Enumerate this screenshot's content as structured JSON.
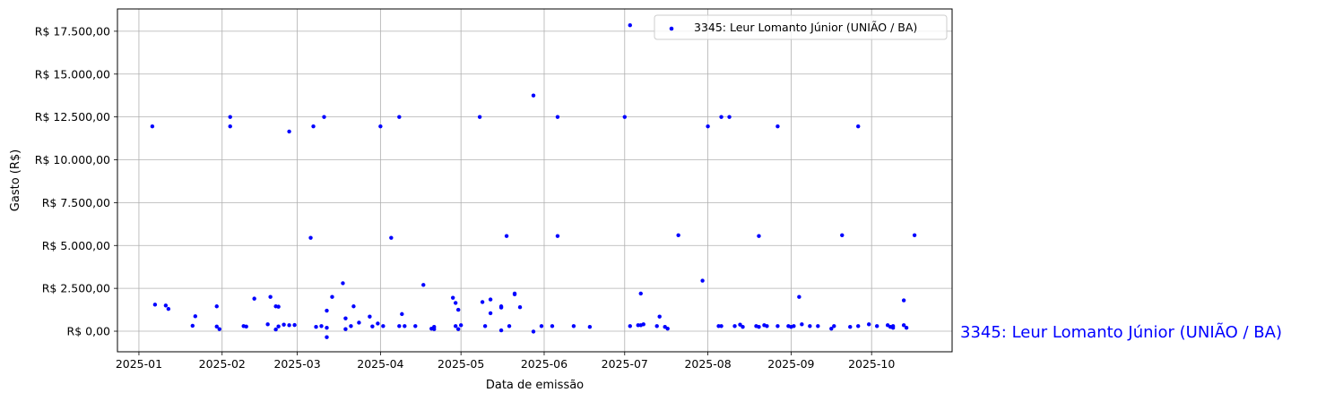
{
  "chart_data": {
    "type": "scatter",
    "xlabel": "Data de emissão",
    "ylabel": "Gasto (R$)",
    "x_axis_type": "date",
    "xlim": [
      "2024-12-24",
      "2025-10-31"
    ],
    "ylim": [
      -1200,
      18800
    ],
    "x_ticks": [
      "2025-01",
      "2025-02",
      "2025-03",
      "2025-04",
      "2025-05",
      "2025-06",
      "2025-07",
      "2025-08",
      "2025-09",
      "2025-10"
    ],
    "x_tick_labels": [
      "2025-01",
      "2025-02",
      "2025-03",
      "2025-04",
      "2025-05",
      "2025-06",
      "2025-07",
      "2025-08",
      "2025-09",
      "2025-10"
    ],
    "y_ticks": [
      0,
      2500,
      5000,
      7500,
      10000,
      12500,
      15000,
      17500
    ],
    "y_tick_labels": [
      "R$ 0,00",
      "R$ 2.500,00",
      "R$ 5.000,00",
      "R$ 7.500,00",
      "R$ 10.000,00",
      "R$ 12.500,00",
      "R$ 15.000,00",
      "R$ 17.500,00"
    ],
    "grid": true,
    "legend_position": "upper right",
    "side_label": "3345: Leur Lomanto Júnior (UNIÃO / BA)",
    "series": [
      {
        "name": "3345: Leur Lomanto Júnior (UNIÃO / BA)",
        "color": "#0000ff",
        "points": [
          [
            "2025-01-06",
            11950
          ],
          [
            "2025-01-07",
            1550
          ],
          [
            "2025-01-11",
            1500
          ],
          [
            "2025-01-12",
            1300
          ],
          [
            "2025-01-21",
            320
          ],
          [
            "2025-01-22",
            870
          ],
          [
            "2025-01-30",
            1450
          ],
          [
            "2025-01-30",
            270
          ],
          [
            "2025-01-31",
            120
          ],
          [
            "2025-02-04",
            12500
          ],
          [
            "2025-02-04",
            11950
          ],
          [
            "2025-02-09",
            300
          ],
          [
            "2025-02-10",
            270
          ],
          [
            "2025-02-13",
            1900
          ],
          [
            "2025-02-18",
            400
          ],
          [
            "2025-02-19",
            2000
          ],
          [
            "2025-02-21",
            1450
          ],
          [
            "2025-02-21",
            100
          ],
          [
            "2025-02-22",
            1430
          ],
          [
            "2025-02-22",
            280
          ],
          [
            "2025-02-24",
            380
          ],
          [
            "2025-02-26",
            350
          ],
          [
            "2025-02-26",
            11650
          ],
          [
            "2025-02-28",
            360
          ],
          [
            "2025-03-06",
            5450
          ],
          [
            "2025-03-07",
            11950
          ],
          [
            "2025-03-08",
            250
          ],
          [
            "2025-03-10",
            300
          ],
          [
            "2025-03-11",
            12500
          ],
          [
            "2025-03-12",
            1200
          ],
          [
            "2025-03-12",
            -350
          ],
          [
            "2025-03-12",
            200
          ],
          [
            "2025-03-14",
            2000
          ],
          [
            "2025-03-18",
            2800
          ],
          [
            "2025-03-19",
            750
          ],
          [
            "2025-03-19",
            120
          ],
          [
            "2025-03-21",
            300
          ],
          [
            "2025-03-22",
            1450
          ],
          [
            "2025-03-24",
            500
          ],
          [
            "2025-03-28",
            850
          ],
          [
            "2025-03-29",
            280
          ],
          [
            "2025-03-31",
            450
          ],
          [
            "2025-04-01",
            11950
          ],
          [
            "2025-04-02",
            300
          ],
          [
            "2025-04-05",
            5450
          ],
          [
            "2025-04-08",
            12500
          ],
          [
            "2025-04-08",
            300
          ],
          [
            "2025-04-09",
            1000
          ],
          [
            "2025-04-10",
            300
          ],
          [
            "2025-04-14",
            300
          ],
          [
            "2025-04-17",
            2700
          ],
          [
            "2025-04-20",
            150
          ],
          [
            "2025-04-21",
            120
          ],
          [
            "2025-04-21",
            250
          ],
          [
            "2025-04-28",
            1950
          ],
          [
            "2025-04-29",
            1650
          ],
          [
            "2025-04-29",
            300
          ],
          [
            "2025-04-30",
            120
          ],
          [
            "2025-04-30",
            1250
          ],
          [
            "2025-05-01",
            350
          ],
          [
            "2025-05-08",
            12500
          ],
          [
            "2025-05-09",
            1700
          ],
          [
            "2025-05-10",
            300
          ],
          [
            "2025-05-12",
            1850
          ],
          [
            "2025-05-12",
            1050
          ],
          [
            "2025-05-16",
            1450
          ],
          [
            "2025-05-16",
            1380
          ],
          [
            "2025-05-16",
            50
          ],
          [
            "2025-05-18",
            5550
          ],
          [
            "2025-05-19",
            300
          ],
          [
            "2025-05-21",
            2150
          ],
          [
            "2025-05-21",
            2200
          ],
          [
            "2025-05-23",
            1400
          ],
          [
            "2025-05-28",
            13750
          ],
          [
            "2025-05-28",
            -20
          ],
          [
            "2025-05-31",
            300
          ],
          [
            "2025-06-04",
            300
          ],
          [
            "2025-06-06",
            12500
          ],
          [
            "2025-06-06",
            5550
          ],
          [
            "2025-06-12",
            300
          ],
          [
            "2025-06-18",
            250
          ],
          [
            "2025-07-01",
            12500
          ],
          [
            "2025-07-03",
            17850
          ],
          [
            "2025-07-03",
            300
          ],
          [
            "2025-07-06",
            350
          ],
          [
            "2025-07-07",
            2200
          ],
          [
            "2025-07-07",
            350
          ],
          [
            "2025-07-08",
            400
          ],
          [
            "2025-07-13",
            300
          ],
          [
            "2025-07-14",
            850
          ],
          [
            "2025-07-16",
            250
          ],
          [
            "2025-07-17",
            150
          ],
          [
            "2025-07-21",
            5600
          ],
          [
            "2025-07-30",
            2950
          ],
          [
            "2025-08-01",
            11950
          ],
          [
            "2025-08-05",
            300
          ],
          [
            "2025-08-06",
            12500
          ],
          [
            "2025-08-06",
            300
          ],
          [
            "2025-08-09",
            12500
          ],
          [
            "2025-08-11",
            300
          ],
          [
            "2025-08-13",
            380
          ],
          [
            "2025-08-14",
            250
          ],
          [
            "2025-08-19",
            300
          ],
          [
            "2025-08-20",
            5550
          ],
          [
            "2025-08-20",
            250
          ],
          [
            "2025-08-22",
            350
          ],
          [
            "2025-08-23",
            300
          ],
          [
            "2025-08-27",
            11950
          ],
          [
            "2025-08-27",
            300
          ],
          [
            "2025-08-31",
            300
          ],
          [
            "2025-09-01",
            250
          ],
          [
            "2025-09-02",
            300
          ],
          [
            "2025-09-04",
            2000
          ],
          [
            "2025-09-05",
            400
          ],
          [
            "2025-09-08",
            300
          ],
          [
            "2025-09-11",
            300
          ],
          [
            "2025-09-16",
            150
          ],
          [
            "2025-09-17",
            300
          ],
          [
            "2025-09-20",
            5600
          ],
          [
            "2025-09-23",
            250
          ],
          [
            "2025-09-26",
            11950
          ],
          [
            "2025-09-26",
            300
          ],
          [
            "2025-09-30",
            400
          ],
          [
            "2025-10-03",
            300
          ],
          [
            "2025-10-07",
            350
          ],
          [
            "2025-10-08",
            250
          ],
          [
            "2025-10-09",
            300
          ],
          [
            "2025-10-09",
            200
          ],
          [
            "2025-10-13",
            350
          ],
          [
            "2025-10-13",
            1800
          ],
          [
            "2025-10-14",
            200
          ],
          [
            "2025-10-17",
            5600
          ]
        ]
      }
    ]
  }
}
